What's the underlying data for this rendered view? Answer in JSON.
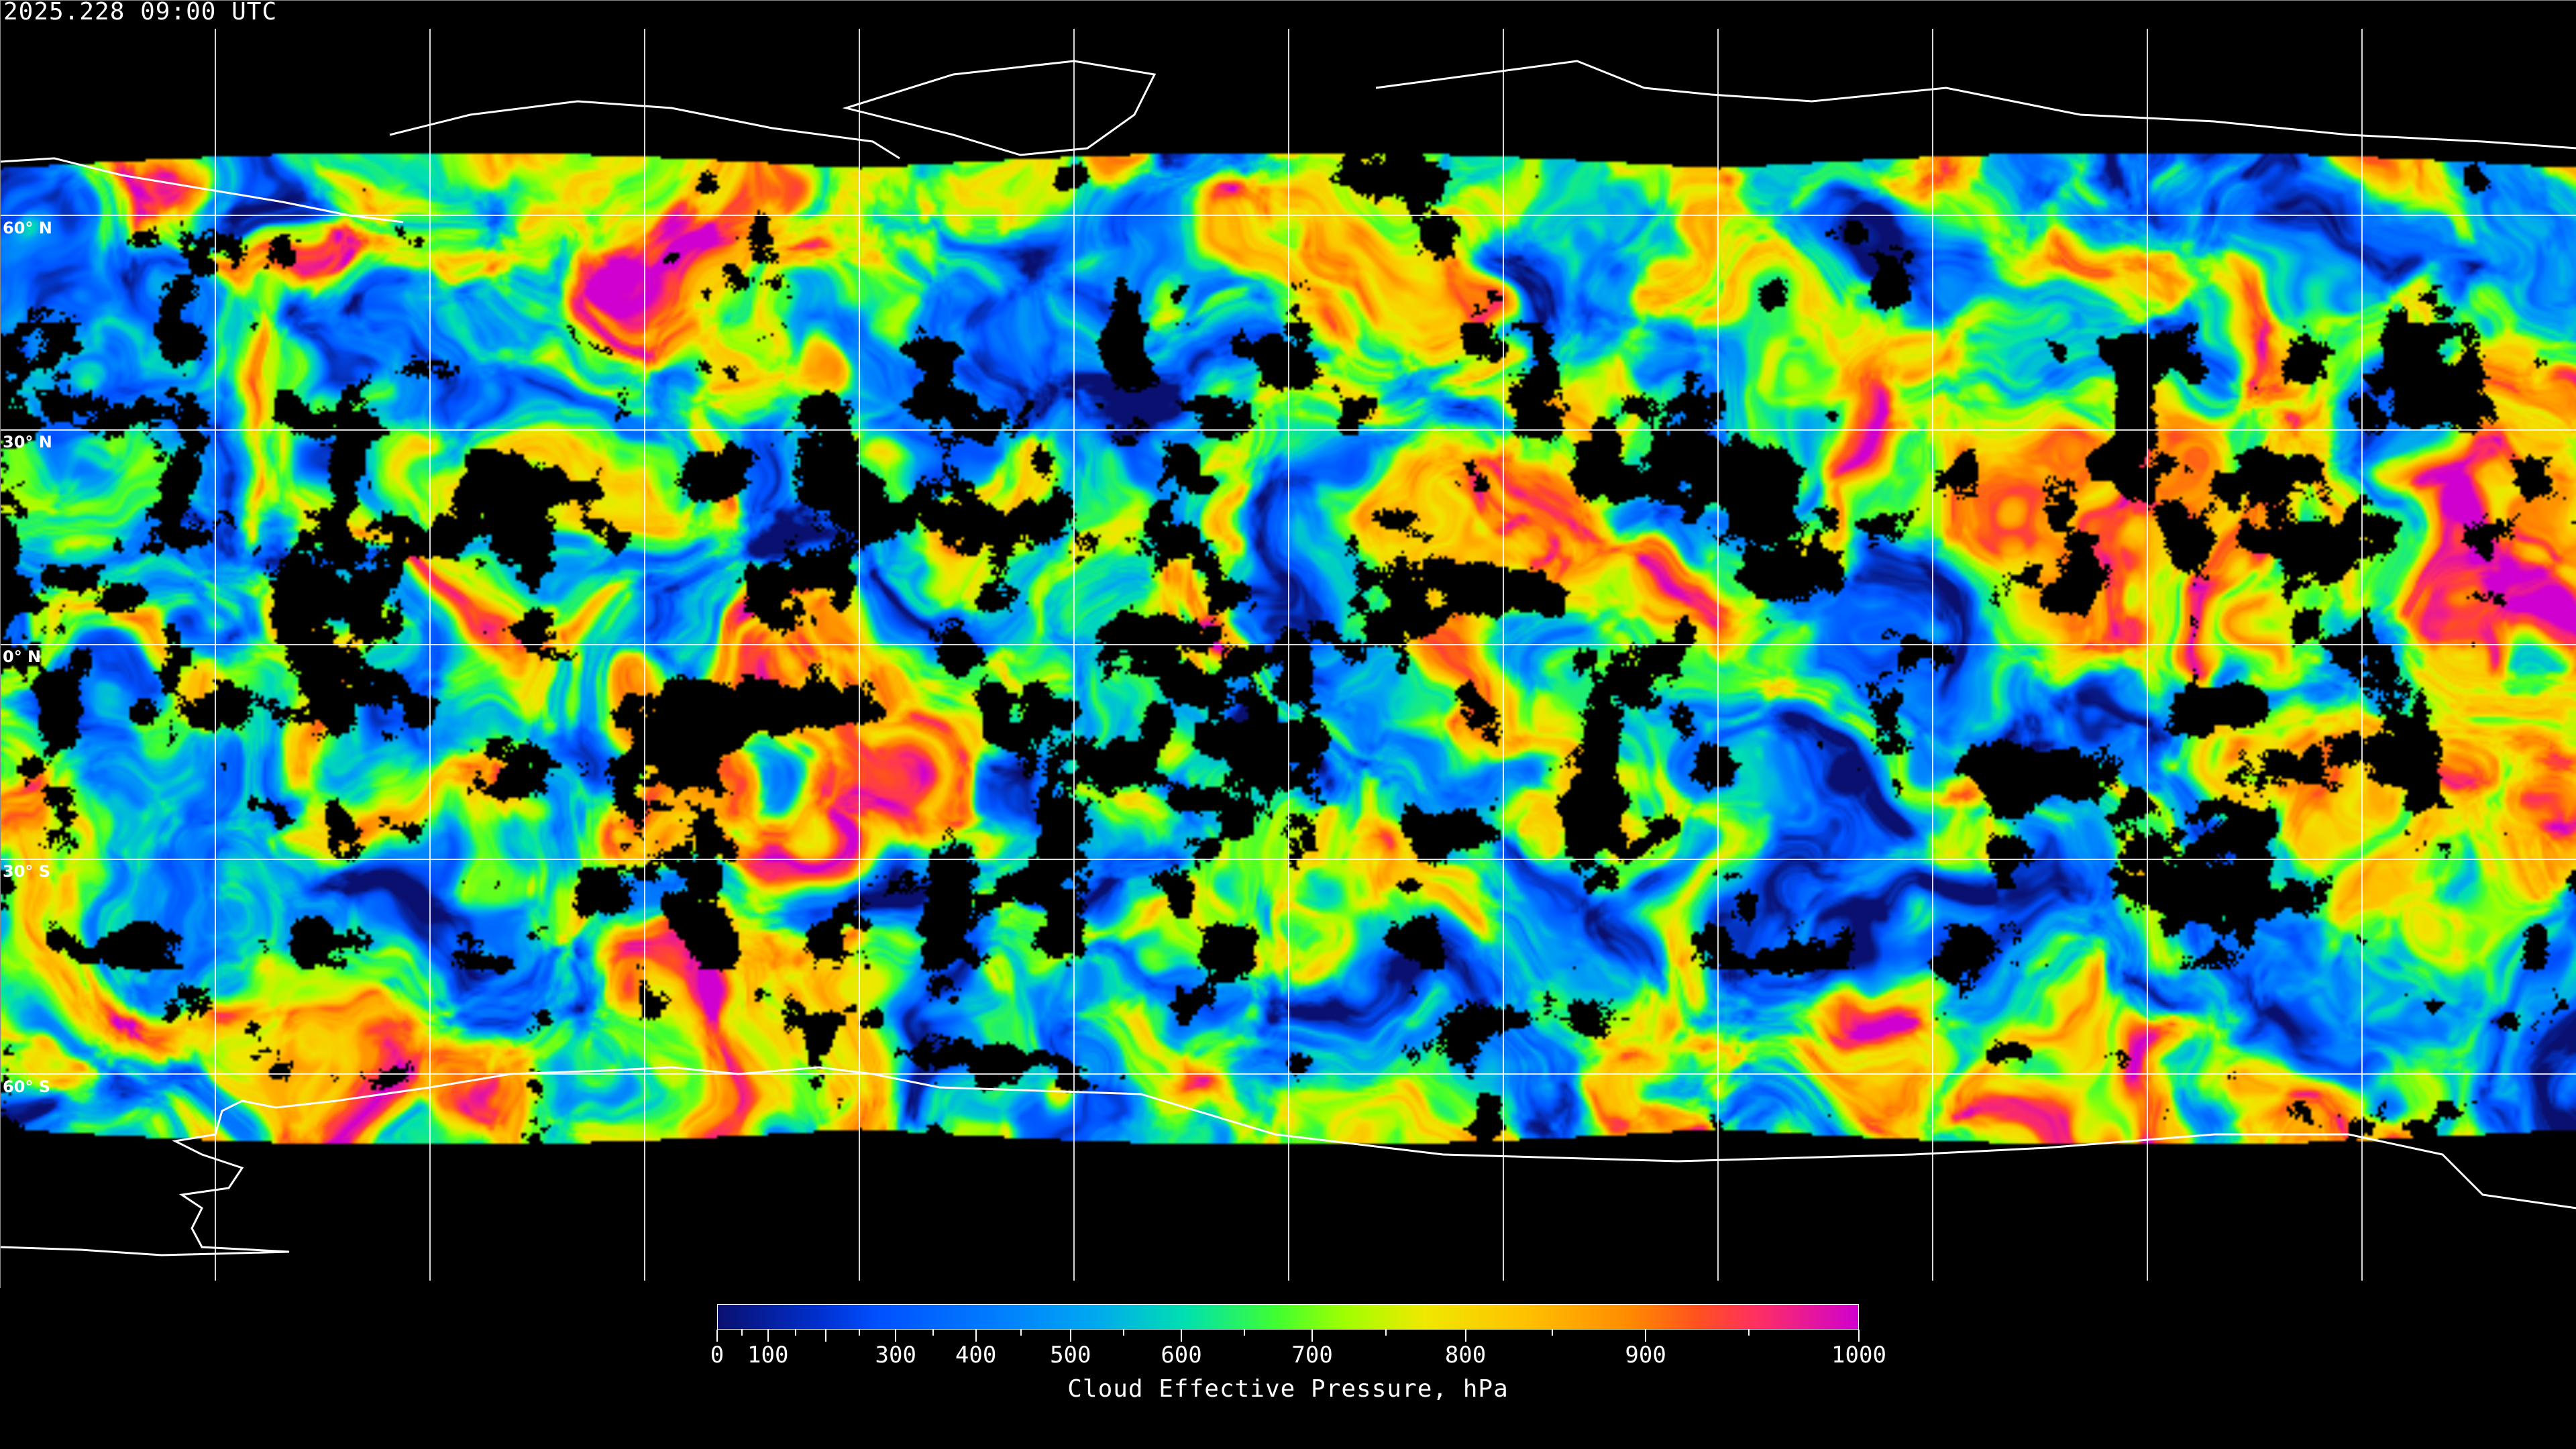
{
  "header": {
    "timestamp": "2025.228 09:00 UTC"
  },
  "map": {
    "projection": "equirectangular",
    "graticule_spacing_deg": 30,
    "lat_labels": [
      "60° N",
      "30° N",
      "0° N",
      "30° S",
      "60° S"
    ],
    "background": "#000000",
    "coastline_color": "#ffffff",
    "gridline_color": "#ffffff"
  },
  "colorbar": {
    "label": "Cloud Effective Pressure, hPa",
    "range": [
      0,
      1000
    ],
    "tick_labels": [
      "0",
      "100",
      "300",
      "400",
      "500",
      "600",
      "700",
      "800",
      "900",
      "1000"
    ],
    "colors": [
      "#0a1070",
      "#0050ff",
      "#0080ff",
      "#00a8f0",
      "#00e0b0",
      "#40ff30",
      "#a0ff00",
      "#f0e800",
      "#ffc000",
      "#ff8a00",
      "#ff5020",
      "#ff3060",
      "#d000d0"
    ]
  }
}
